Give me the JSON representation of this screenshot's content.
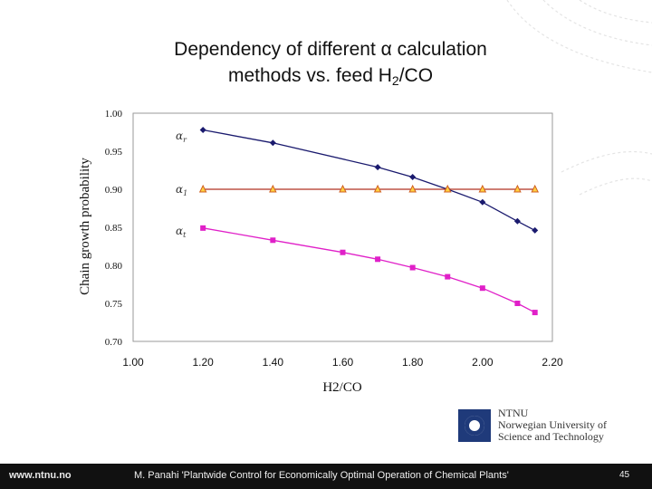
{
  "slide": {
    "title_line1": "Dependency of different α calculation",
    "title_line2_pre": "methods vs. feed H",
    "title_line2_sub": "2",
    "title_line2_post": "/CO"
  },
  "chart_data": {
    "type": "line",
    "title": "",
    "xlabel": "H2/CO",
    "ylabel": "Chain growth probability",
    "xlim": [
      1.0,
      2.2
    ],
    "ylim": [
      0.7,
      1.0
    ],
    "x_ticks": [
      "1.00",
      "1.20",
      "1.40",
      "1.60",
      "1.80",
      "2.00",
      "2.20"
    ],
    "y_ticks": [
      "0.70",
      "0.75",
      "0.80",
      "0.85",
      "0.90",
      "0.95",
      "1.00"
    ],
    "series": [
      {
        "name": "α_r",
        "label": "α",
        "label_sub": "r",
        "label_y": 0.97,
        "color": "#1a1a6e",
        "marker": "diamond",
        "x": [
          1.2,
          1.4,
          1.7,
          1.8,
          1.9,
          2.0,
          2.1,
          2.15
        ],
        "y": [
          0.978,
          0.961,
          0.929,
          0.916,
          0.9,
          0.883,
          0.858,
          0.846
        ]
      },
      {
        "name": "α_1",
        "label": "α",
        "label_sub": "1",
        "label_y": 0.9,
        "color": "#b03020",
        "marker": "triangle",
        "x": [
          1.2,
          1.4,
          1.6,
          1.7,
          1.8,
          1.9,
          2.0,
          2.1,
          2.15
        ],
        "y": [
          0.9,
          0.9,
          0.9,
          0.9,
          0.9,
          0.9,
          0.9,
          0.9,
          0.9
        ]
      },
      {
        "name": "α_t",
        "label": "α",
        "label_sub": "t",
        "label_y": 0.845,
        "color": "#e020c8",
        "marker": "square",
        "x": [
          1.2,
          1.4,
          1.6,
          1.7,
          1.8,
          1.9,
          2.0,
          2.1,
          2.15
        ],
        "y": [
          0.849,
          0.833,
          0.817,
          0.808,
          0.797,
          0.785,
          0.77,
          0.75,
          0.738
        ]
      }
    ]
  },
  "logo": {
    "line1": "NTNU",
    "line2": "Norwegian University of",
    "line3": "Science and Technology"
  },
  "footer": {
    "url": "www.ntnu.no",
    "citation": "M. Panahi 'Plantwide Control for Economically Optimal Operation of Chemical Plants'",
    "page": "45"
  }
}
